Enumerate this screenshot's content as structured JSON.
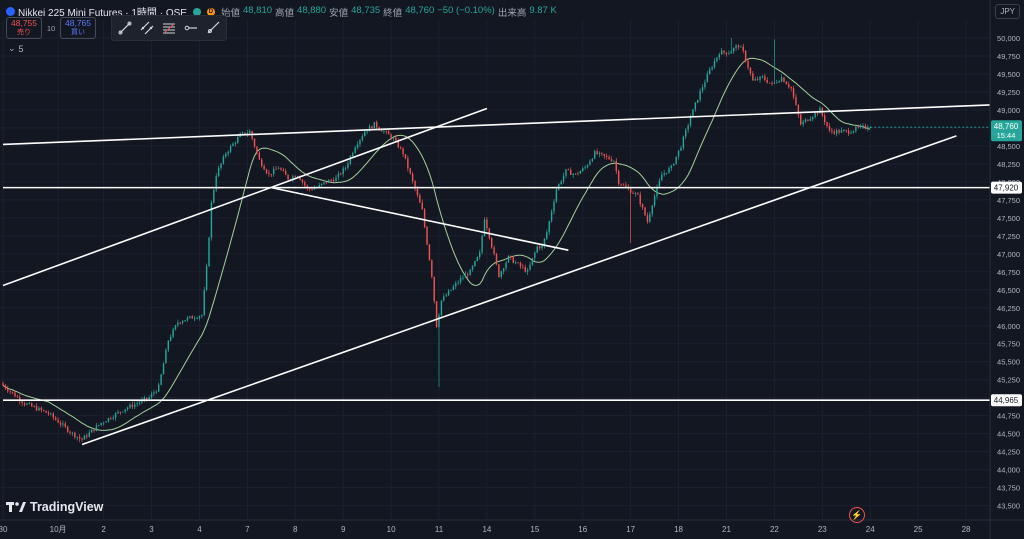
{
  "header": {
    "title": "Nikkei 225 Mini Futures · 1時間 · OSE",
    "ohlc": [
      {
        "label": "始値",
        "value": "48,810"
      },
      {
        "label": "高値",
        "value": "48,880"
      },
      {
        "label": "安値",
        "value": "48,735"
      },
      {
        "label": "終値",
        "value": "48,760"
      },
      {
        "label": "",
        "value": "−50 (−0.10%)"
      },
      {
        "label": "出来高",
        "value": "9.87 K"
      }
    ],
    "sell": {
      "price": "48,755",
      "label": "売り"
    },
    "buy": {
      "price": "48,765",
      "label": "買い"
    },
    "quantity": "10",
    "indicator": "5",
    "currency": "JPY"
  },
  "brand": {
    "watermark": "TradingView"
  },
  "colors": {
    "background": "#131722",
    "up": "#26a69a",
    "down": "#ef5350",
    "ma": "#a5cf9a",
    "trendline": "#ffffff",
    "last_price_tag": "#26a69a"
  },
  "chart_data": {
    "type": "candlestick",
    "ylim": [
      43300,
      50250
    ],
    "y_ticks": [
      43500,
      43750,
      44000,
      44250,
      44500,
      44750,
      45000,
      45250,
      45500,
      45750,
      46000,
      46250,
      46500,
      46750,
      47000,
      47250,
      47500,
      47750,
      48000,
      48250,
      48500,
      48750,
      49000,
      49250,
      49500,
      49750,
      50000
    ],
    "x_ticks": [
      "30",
      "10月",
      "2",
      "3",
      "4",
      "7",
      "8",
      "9",
      "10",
      "11",
      "14",
      "15",
      "16",
      "17",
      "18",
      "21",
      "22",
      "23",
      "24",
      "25",
      "28"
    ],
    "x_tick_pos": [
      0,
      11.5,
      21,
      31,
      41,
      51,
      61,
      71,
      81,
      91,
      101,
      111,
      121,
      131,
      141,
      151,
      161,
      171,
      181,
      191,
      201
    ],
    "x_max": 206,
    "last_price": {
      "value": "48,760",
      "countdown": "15:44",
      "y": 48760
    },
    "level_tags": [
      {
        "value": "47,920",
        "y": 47920
      },
      {
        "value": "44,965",
        "y": 44965
      }
    ],
    "lines": [
      {
        "name": "horizontal-support-upper",
        "x1": 0,
        "y1": 47920,
        "x2": 206,
        "y2": 47920
      },
      {
        "name": "horizontal-support-lower",
        "x1": 0,
        "y1": 44965,
        "x2": 206,
        "y2": 44965
      },
      {
        "name": "channel-top",
        "x1": 0,
        "y1": 48520,
        "x2": 206,
        "y2": 49070
      },
      {
        "name": "lower-trend",
        "x1": 16.5,
        "y1": 44350,
        "x2": 199,
        "y2": 48640
      },
      {
        "name": "upper-trend",
        "x1": 0,
        "y1": 46560,
        "x2": 101,
        "y2": 49020
      },
      {
        "name": "descending-line",
        "x1": 56,
        "y1": 47920,
        "x2": 118,
        "y2": 47050
      }
    ],
    "anchors": [
      [
        0,
        45200
      ],
      [
        5,
        44920
      ],
      [
        10,
        44780
      ],
      [
        15,
        44500
      ],
      [
        17,
        44420
      ],
      [
        21,
        44650
      ],
      [
        26,
        44850
      ],
      [
        31,
        45000
      ],
      [
        33,
        45150
      ],
      [
        35,
        45800
      ],
      [
        37,
        46050
      ],
      [
        39,
        46100
      ],
      [
        42,
        46150
      ],
      [
        43,
        46800
      ],
      [
        44,
        47700
      ],
      [
        45,
        48100
      ],
      [
        47,
        48400
      ],
      [
        50,
        48650
      ],
      [
        52,
        48700
      ],
      [
        54,
        48300
      ],
      [
        56,
        48100
      ],
      [
        58,
        48200
      ],
      [
        60,
        48050
      ],
      [
        62,
        48100
      ],
      [
        64,
        47900
      ],
      [
        66,
        47920
      ],
      [
        68,
        48000
      ],
      [
        70,
        48050
      ],
      [
        72,
        48200
      ],
      [
        74,
        48500
      ],
      [
        76,
        48700
      ],
      [
        78,
        48800
      ],
      [
        80,
        48700
      ],
      [
        82,
        48600
      ],
      [
        84,
        48400
      ],
      [
        86,
        48000
      ],
      [
        88,
        47600
      ],
      [
        90,
        46700
      ],
      [
        91,
        46000
      ],
      [
        92,
        46350
      ],
      [
        94,
        46500
      ],
      [
        96,
        46650
      ],
      [
        98,
        46750
      ],
      [
        100,
        47000
      ],
      [
        101,
        47500
      ],
      [
        102,
        47250
      ],
      [
        104,
        46700
      ],
      [
        106,
        46950
      ],
      [
        108,
        46850
      ],
      [
        110,
        46750
      ],
      [
        112,
        47100
      ],
      [
        113,
        47100
      ],
      [
        114,
        47300
      ],
      [
        116,
        47900
      ],
      [
        118,
        48150
      ],
      [
        120,
        48100
      ],
      [
        122,
        48200
      ],
      [
        124,
        48400
      ],
      [
        126,
        48350
      ],
      [
        128,
        48300
      ],
      [
        129,
        48000
      ],
      [
        131,
        47900
      ],
      [
        133,
        47800
      ],
      [
        135,
        47450
      ],
      [
        136,
        47700
      ],
      [
        138,
        48100
      ],
      [
        140,
        48200
      ],
      [
        142,
        48500
      ],
      [
        144,
        48900
      ],
      [
        146,
        49250
      ],
      [
        148,
        49550
      ],
      [
        150,
        49800
      ],
      [
        152,
        49800
      ],
      [
        154,
        49900
      ],
      [
        155,
        49800
      ],
      [
        157,
        49400
      ],
      [
        159,
        49450
      ],
      [
        161,
        49350
      ],
      [
        163,
        49450
      ],
      [
        165,
        49300
      ],
      [
        167,
        48800
      ],
      [
        169,
        48900
      ],
      [
        171,
        49000
      ],
      [
        173,
        48700
      ],
      [
        175,
        48700
      ],
      [
        177,
        48700
      ],
      [
        179,
        48750
      ],
      [
        181,
        48760
      ]
    ]
  }
}
